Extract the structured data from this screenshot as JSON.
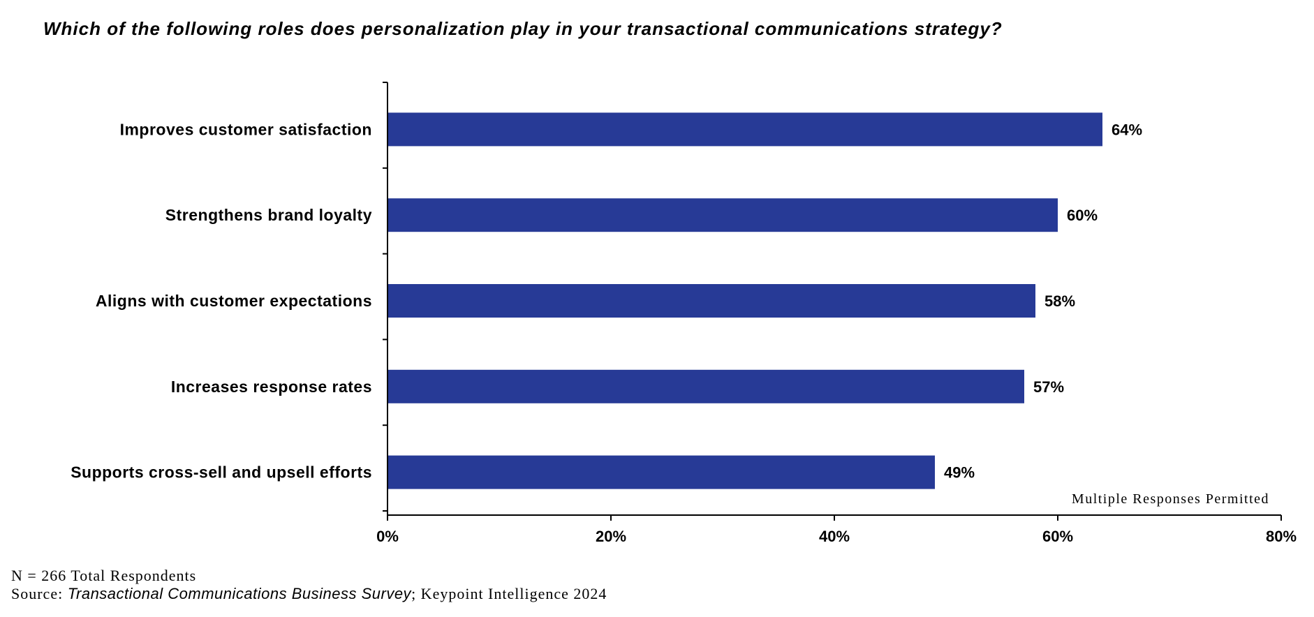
{
  "chart_data": {
    "type": "bar",
    "orientation": "horizontal",
    "title": "Which of the following roles does personalization play in your transactional communications strategy?",
    "categories": [
      "Improves customer satisfaction",
      "Strengthens brand loyalty",
      "Aligns with customer expectations",
      "Increases response rates",
      "Supports cross-sell and upsell efforts"
    ],
    "values": [
      64,
      60,
      58,
      57,
      49
    ],
    "value_labels": [
      "64%",
      "60%",
      "58%",
      "57%",
      "49%"
    ],
    "xlim": [
      0,
      80
    ],
    "x_ticks": [
      "0%",
      "20%",
      "40%",
      "60%",
      "80%"
    ],
    "xlabel": "",
    "ylabel": "",
    "bar_color": "#273a96",
    "grid": false,
    "legend": "none",
    "annotation": "Multiple Responses Permitted"
  },
  "footer": {
    "respondents": "N = 266 Total Respondents",
    "source_prefix": "Source: ",
    "source_title": "Transactional Communications Business Survey",
    "source_suffix": "; Keypoint Intelligence 2024"
  }
}
